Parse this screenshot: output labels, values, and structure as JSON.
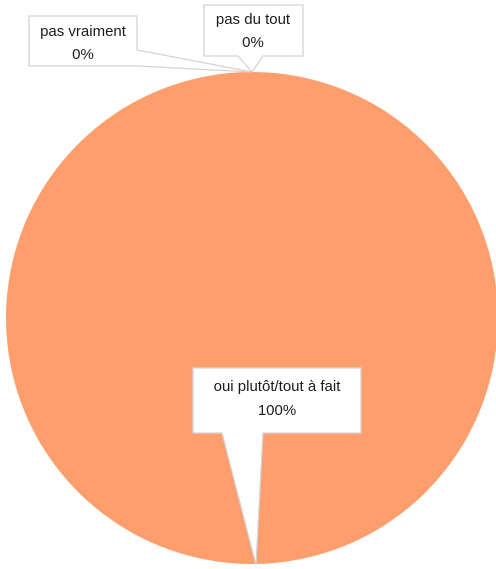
{
  "chart_data": {
    "type": "pie",
    "title": "",
    "slices": [
      {
        "label": "oui plutôt/tout à fait",
        "value_text": "100%",
        "value": 100,
        "color": "#ff9e6d"
      },
      {
        "label": "pas vraiment",
        "value_text": "0%",
        "value": 0,
        "color": "#ff9e6d"
      },
      {
        "label": "pas du tout",
        "value_text": "0%",
        "value": 0,
        "color": "#ff9e6d"
      }
    ],
    "legend": "none",
    "data_labels": "callouts"
  }
}
